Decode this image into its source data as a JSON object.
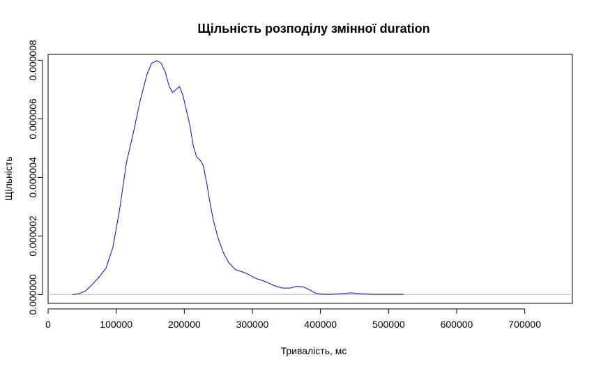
{
  "chart_data": {
    "type": "line",
    "title": "Щільність розподілу змінної duration",
    "xlabel": "Тривалість, мс",
    "ylabel": "Щільність",
    "xlim": [
      0,
      770000
    ],
    "ylim": [
      -3e-07,
      8.2e-06
    ],
    "x_ticks": [
      0,
      100000,
      200000,
      300000,
      400000,
      500000,
      600000,
      700000
    ],
    "x_tick_labels": [
      "0",
      "100000",
      "200000",
      "300000",
      "400000",
      "500000",
      "600000",
      "700000"
    ],
    "y_ticks": [
      0,
      2e-06,
      4e-06,
      6e-06,
      8e-06
    ],
    "y_tick_labels": [
      "0.000000",
      "0.000002",
      "0.000004",
      "0.000006",
      "0.000008"
    ],
    "baseline": 0,
    "colors": {
      "line": "#0000ff",
      "baseline": "#bebebe",
      "axis": "#000000"
    },
    "series": [
      {
        "x": [
          36000,
          45000,
          55000,
          65000,
          75000,
          85000,
          95000,
          105000,
          115000,
          125000,
          135000,
          145000,
          152000,
          160000,
          166000,
          172000,
          178000,
          183000,
          188000,
          193000,
          198000,
          203000,
          208000,
          213000,
          218000,
          223000,
          228000,
          233000,
          238000,
          243000,
          250000,
          258000,
          265000,
          275000,
          285000,
          295000,
          305000,
          315000,
          325000,
          335000,
          345000,
          355000,
          365000,
          375000,
          385000,
          390000,
          395000,
          405000,
          415000,
          425000,
          435000,
          445000,
          455000,
          465000,
          475000,
          485000,
          495000,
          505000,
          515000,
          522000
        ],
        "y": [
          0,
          3e-08,
          1.2e-07,
          3.5e-07,
          6e-07,
          9e-07,
          1.6e-06,
          2.9e-06,
          4.5e-06,
          5.5e-06,
          6.6e-06,
          7.5e-06,
          7.9e-06,
          7.98e-06,
          7.9e-06,
          7.6e-06,
          7.1e-06,
          6.9e-06,
          7e-06,
          7.1e-06,
          6.8e-06,
          6.3e-06,
          5.8e-06,
          5.1e-06,
          4.7e-06,
          4.6e-06,
          4.4e-06,
          3.8e-06,
          3.1e-06,
          2.5e-06,
          1.9e-06,
          1.4e-06,
          1.1e-06,
          8.5e-07,
          7.8e-07,
          6.8e-07,
          5.5e-07,
          4.8e-07,
          3.8e-07,
          2.8e-07,
          2.2e-07,
          2.2e-07,
          2.8e-07,
          2.6e-07,
          1.5e-07,
          8e-08,
          3e-08,
          1e-08,
          1e-08,
          2e-08,
          4e-08,
          6e-08,
          4e-08,
          2e-08,
          1e-08,
          1e-08,
          1e-08,
          1e-08,
          1e-08,
          1e-08
        ]
      }
    ]
  }
}
